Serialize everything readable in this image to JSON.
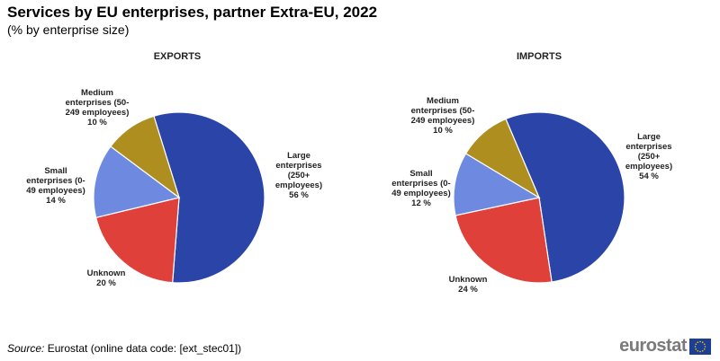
{
  "title": "Services by EU enterprises, partner Extra-EU, 2022",
  "subtitle": "(% by enterprise size)",
  "source": {
    "label": "Source:",
    "text": "Eurostat  (online data code: [ext_stec01])"
  },
  "logo": {
    "text": "eurostat"
  },
  "colors": {
    "large": "#2a44a8",
    "unknown": "#e0403a",
    "small": "#6e8ae0",
    "medium": "#ad8e1e"
  },
  "chart_data": [
    {
      "type": "pie",
      "title": "EXPORTS",
      "slices": [
        {
          "key": "large",
          "label": [
            "Large",
            "enterprises",
            "(250+",
            "employees)",
            "56 %"
          ],
          "value": 56
        },
        {
          "key": "unknown",
          "label": [
            "Unknown",
            "20 %"
          ],
          "value": 20
        },
        {
          "key": "small",
          "label": [
            "Small",
            "enterprises (0-",
            "49 employees)",
            "14 %"
          ],
          "value": 14
        },
        {
          "key": "medium",
          "label": [
            "Medium",
            "enterprises (50-",
            "249 employees)",
            "10 %"
          ],
          "value": 10
        }
      ]
    },
    {
      "type": "pie",
      "title": "IMPORTS",
      "slices": [
        {
          "key": "large",
          "label": [
            "Large",
            "enterprises",
            "(250+",
            "employees)",
            "54 %"
          ],
          "value": 54
        },
        {
          "key": "unknown",
          "label": [
            "Unknown",
            "24 %"
          ],
          "value": 24
        },
        {
          "key": "small",
          "label": [
            "Small",
            "enterprises (0-",
            "49 employees)",
            "12 %"
          ],
          "value": 12
        },
        {
          "key": "medium",
          "label": [
            "Medium",
            "enterprises (50-",
            "249 employees)",
            "10 %"
          ],
          "value": 10
        }
      ]
    }
  ]
}
